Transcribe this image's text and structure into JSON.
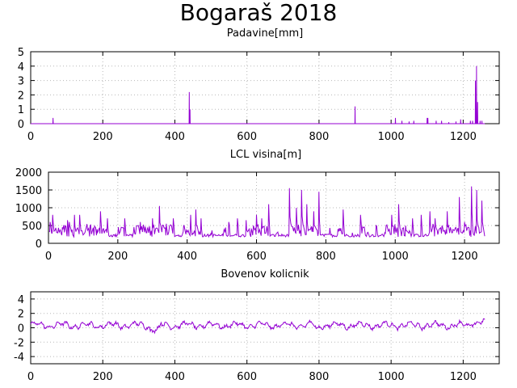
{
  "title": "Bogaraš 2018",
  "chart_data": [
    {
      "type": "line",
      "subtitle": "Padavine[mm]",
      "xlim": [
        0,
        1300
      ],
      "ylim": [
        0,
        5
      ],
      "xticks": [
        0,
        200,
        400,
        600,
        800,
        1000,
        1200
      ],
      "yticks": [
        0,
        1,
        2,
        3,
        4,
        5
      ],
      "grid": true,
      "series_color": "#9400d3",
      "spikes": [
        [
          62,
          0.4
        ],
        [
          440,
          2.2
        ],
        [
          442,
          1.0
        ],
        [
          900,
          1.2
        ],
        [
          1012,
          0.4
        ],
        [
          1030,
          0.2
        ],
        [
          1050,
          0.15
        ],
        [
          1063,
          0.2
        ],
        [
          1100,
          0.4
        ],
        [
          1102,
          0.4
        ],
        [
          1125,
          0.2
        ],
        [
          1140,
          0.2
        ],
        [
          1160,
          0.1
        ],
        [
          1180,
          0.15
        ],
        [
          1193,
          0.3
        ],
        [
          1220,
          0.2
        ],
        [
          1226,
          0.2
        ],
        [
          1234,
          3.0
        ],
        [
          1237,
          4.0
        ],
        [
          1240,
          1.5
        ],
        [
          1247,
          0.2
        ],
        [
          1252,
          0.2
        ]
      ]
    },
    {
      "type": "line",
      "subtitle": "LCL visina[m]",
      "xlim": [
        0,
        1300
      ],
      "ylim": [
        0,
        2000
      ],
      "xticks": [
        0,
        200,
        400,
        600,
        800,
        1000,
        1200
      ],
      "yticks": [
        0,
        500,
        1000,
        1500,
        2000
      ],
      "grid": true,
      "series_color": "#9400d3",
      "peaks": [
        [
          5,
          600
        ],
        [
          12,
          800
        ],
        [
          25,
          300
        ],
        [
          40,
          450
        ],
        [
          55,
          650
        ],
        [
          60,
          600
        ],
        [
          75,
          800
        ],
        [
          90,
          800
        ],
        [
          105,
          300
        ],
        [
          120,
          500
        ],
        [
          140,
          400
        ],
        [
          150,
          900
        ],
        [
          170,
          700
        ],
        [
          200,
          250
        ],
        [
          220,
          700
        ],
        [
          245,
          300
        ],
        [
          265,
          600
        ],
        [
          285,
          400
        ],
        [
          300,
          700
        ],
        [
          320,
          1050
        ],
        [
          340,
          550
        ],
        [
          360,
          700
        ],
        [
          390,
          500
        ],
        [
          410,
          800
        ],
        [
          425,
          950
        ],
        [
          440,
          700
        ],
        [
          470,
          250
        ],
        [
          505,
          300
        ],
        [
          520,
          600
        ],
        [
          545,
          700
        ],
        [
          570,
          650
        ],
        [
          585,
          400
        ],
        [
          600,
          800
        ],
        [
          615,
          700
        ],
        [
          635,
          1100
        ],
        [
          660,
          300
        ],
        [
          695,
          1550
        ],
        [
          715,
          1000
        ],
        [
          730,
          1500
        ],
        [
          745,
          1100
        ],
        [
          765,
          900
        ],
        [
          780,
          1450
        ],
        [
          810,
          250
        ],
        [
          835,
          400
        ],
        [
          850,
          950
        ],
        [
          875,
          200
        ],
        [
          900,
          800
        ],
        [
          920,
          300
        ],
        [
          945,
          500
        ],
        [
          970,
          300
        ],
        [
          990,
          800
        ],
        [
          1010,
          1100
        ],
        [
          1030,
          500
        ],
        [
          1050,
          700
        ],
        [
          1075,
          800
        ],
        [
          1100,
          900
        ],
        [
          1115,
          700
        ],
        [
          1135,
          500
        ],
        [
          1150,
          900
        ],
        [
          1165,
          300
        ],
        [
          1185,
          1300
        ],
        [
          1200,
          600
        ],
        [
          1220,
          1600
        ],
        [
          1235,
          1500
        ],
        [
          1250,
          1200
        ]
      ]
    },
    {
      "type": "line",
      "subtitle": "Bovenov kolicnik",
      "xlim": [
        0,
        1300
      ],
      "ylim": [
        -5,
        5
      ],
      "xticks": [
        0,
        200,
        400,
        600,
        800,
        1000,
        1200
      ],
      "yticks": [
        -4,
        -2,
        0,
        2,
        4
      ],
      "grid": true,
      "series_color": "#9400d3",
      "x_end": 1260
    }
  ]
}
